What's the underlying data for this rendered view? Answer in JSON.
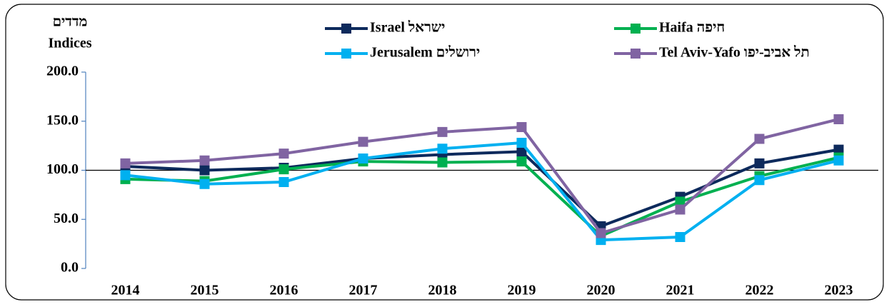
{
  "chart_data": {
    "type": "line",
    "y_axis_title": [
      "מדדים",
      "Indices"
    ],
    "categories": [
      "2014",
      "2015",
      "2016",
      "2017",
      "2018",
      "2019",
      "2020",
      "2021",
      "2022",
      "2023"
    ],
    "series": [
      {
        "name": "Israel ישראל",
        "color": "#0d2a5c",
        "values": [
          104,
          100,
          102.5,
          112,
          116,
          119,
          43,
          73,
          107,
          121
        ]
      },
      {
        "name": "Haifa חיפה",
        "color": "#00b050",
        "values": [
          91,
          89,
          101,
          109,
          108,
          109,
          33,
          68,
          94,
          113
        ]
      },
      {
        "name": "Jerusalem ירושלים",
        "color": "#00b0f0",
        "values": [
          95,
          86,
          88,
          112,
          122,
          128,
          29,
          32,
          90,
          110
        ]
      },
      {
        "name": "Tel Aviv-Yafo תל אביב-יפו",
        "color": "#8064a2",
        "values": [
          107,
          110,
          117,
          129,
          139,
          144,
          36,
          60,
          132,
          152
        ]
      }
    ],
    "ylim": [
      0,
      200
    ],
    "yticks": [
      {
        "value": 0,
        "label": "0.0"
      },
      {
        "value": 50,
        "label": "50.0"
      },
      {
        "value": 100,
        "label": "100.0"
      },
      {
        "value": 150,
        "label": "150.0"
      },
      {
        "value": 200,
        "label": "200.0"
      }
    ],
    "reference_line": 100,
    "legend": "top"
  }
}
